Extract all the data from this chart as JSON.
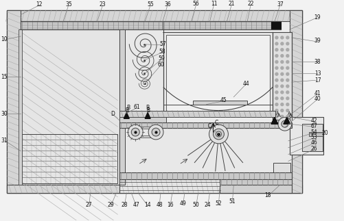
{
  "bg": "#f2f2f2",
  "lc": "#444444",
  "dc": "#111111",
  "wc": "#ffffff",
  "hc": "#cccccc",
  "mc": "#888888",
  "figsize": [
    5.02,
    3.23
  ],
  "dpi": 100,
  "labels_top": [
    [
      55,
      3,
      "12"
    ],
    [
      98,
      3,
      "35"
    ],
    [
      148,
      3,
      "23"
    ],
    [
      218,
      3,
      "55"
    ],
    [
      243,
      3,
      "36"
    ],
    [
      285,
      2,
      "56"
    ],
    [
      311,
      2,
      "11"
    ],
    [
      337,
      2,
      "21"
    ],
    [
      365,
      2,
      "22"
    ],
    [
      408,
      3,
      "37"
    ],
    [
      462,
      22,
      "19"
    ]
  ],
  "labels_right": [
    [
      463,
      57,
      "39"
    ],
    [
      463,
      88,
      "38"
    ],
    [
      463,
      105,
      "13"
    ],
    [
      463,
      115,
      "17"
    ],
    [
      463,
      135,
      "41"
    ],
    [
      463,
      143,
      "40"
    ],
    [
      474,
      193,
      "20"
    ],
    [
      458,
      175,
      "42"
    ],
    [
      458,
      183,
      "67"
    ],
    [
      458,
      192,
      "54"
    ],
    [
      458,
      200,
      "53"
    ],
    [
      458,
      208,
      "46"
    ],
    [
      458,
      217,
      "26"
    ]
  ],
  "labels_left": [
    [
      4,
      55,
      "10"
    ],
    [
      4,
      110,
      "15"
    ],
    [
      4,
      165,
      "30"
    ],
    [
      4,
      205,
      "31"
    ]
  ],
  "labels_center": [
    [
      236,
      62,
      "57"
    ],
    [
      235,
      73,
      "58"
    ],
    [
      234,
      83,
      "59"
    ],
    [
      233,
      92,
      "60"
    ],
    [
      198,
      155,
      "61"
    ],
    [
      163,
      165,
      "D"
    ],
    [
      358,
      120,
      "44"
    ],
    [
      325,
      145,
      "45"
    ],
    [
      186,
      156,
      "B"
    ],
    [
      214,
      156,
      "B"
    ],
    [
      305,
      183,
      "C"
    ],
    [
      315,
      178,
      "C"
    ]
  ],
  "labels_bottom": [
    [
      390,
      286,
      "18"
    ],
    [
      338,
      295,
      "51"
    ],
    [
      318,
      298,
      "52"
    ],
    [
      302,
      300,
      "24"
    ],
    [
      285,
      300,
      "50"
    ],
    [
      266,
      298,
      "49"
    ],
    [
      247,
      300,
      "16"
    ],
    [
      231,
      300,
      "48"
    ],
    [
      214,
      300,
      "14"
    ],
    [
      197,
      300,
      "47"
    ],
    [
      180,
      300,
      "28"
    ],
    [
      160,
      300,
      "29"
    ],
    [
      128,
      300,
      "27"
    ]
  ]
}
